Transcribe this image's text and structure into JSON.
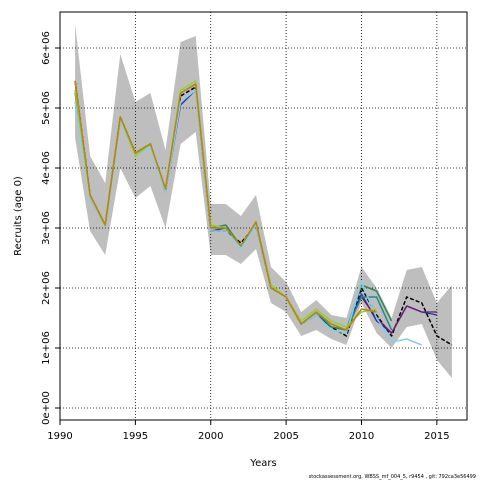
{
  "chart_data": {
    "type": "line",
    "xlabel": "Years",
    "ylabel": "Recruits (age 0)",
    "xlim": [
      1990,
      2017
    ],
    "ylim": [
      -200000,
      6600000
    ],
    "x_ticks": [
      1990,
      1995,
      2000,
      2005,
      2010,
      2015
    ],
    "x_tick_labels": [
      "1990",
      "1995",
      "2000",
      "2005",
      "2010",
      "2015"
    ],
    "y_ticks": [
      0,
      1000000,
      2000000,
      3000000,
      4000000,
      5000000,
      6000000
    ],
    "y_tick_labels": [
      "0e+00",
      "1e+06",
      "2e+06",
      "3e+06",
      "4e+06",
      "5e+06",
      "6e+06"
    ],
    "grid": true,
    "footer": "stockassessment.org, WBSS_mf_004_5, r9454 , git: 792ca3e56499",
    "band": {
      "color": "#bebebe",
      "x": [
        1991,
        1992,
        1993,
        1994,
        1995,
        1996,
        1997,
        1998,
        1999,
        2000,
        2001,
        2002,
        2003,
        2004,
        2005,
        2006,
        2007,
        2008,
        2009,
        2010,
        2011,
        2012,
        2013,
        2014,
        2015,
        2016
      ],
      "lower": [
        4500000,
        2950000,
        2550000,
        4000000,
        3500000,
        3700000,
        3000000,
        4400000,
        4600000,
        2550000,
        2550000,
        2400000,
        2650000,
        1750000,
        1600000,
        1200000,
        1300000,
        1150000,
        1050000,
        1750000,
        1250000,
        1000000,
        1350000,
        1400000,
        800000,
        500000
      ],
      "upper": [
        6400000,
        4200000,
        3750000,
        5900000,
        5100000,
        5250000,
        4300000,
        6100000,
        6200000,
        3400000,
        3400000,
        3200000,
        3550000,
        2350000,
        2100000,
        1600000,
        1800000,
        1550000,
        1500000,
        2350000,
        2000000,
        1500000,
        2300000,
        2350000,
        1750000,
        2050000
      ]
    },
    "series": [
      {
        "color": "#000000",
        "dashed": true,
        "width": 1.5,
        "x": [
          1991,
          1992,
          1993,
          1994,
          1995,
          1996,
          1997,
          1998,
          1999,
          2000,
          2001,
          2002,
          2003,
          2004,
          2005,
          2006,
          2007,
          2008,
          2009,
          2010,
          2011,
          2012,
          2013,
          2014,
          2015,
          2016
        ],
        "values": [
          5450000,
          3550000,
          3050000,
          4850000,
          4250000,
          4400000,
          3600000,
          5200000,
          5350000,
          2950000,
          2950000,
          2750000,
          3050000,
          2000000,
          1850000,
          1400000,
          1550000,
          1350000,
          1200000,
          2000000,
          1550000,
          1200000,
          1850000,
          1750000,
          1200000,
          1050000
        ]
      },
      {
        "color": "#2233aa",
        "dashed": false,
        "width": 1.3,
        "x": [
          1991,
          1992,
          1993,
          1994,
          1995,
          1996,
          1997,
          1998,
          1999,
          2000,
          2001,
          2002,
          2003,
          2004,
          2005,
          2006,
          2007,
          2008,
          2009,
          2010,
          2011,
          2012,
          2013,
          2014,
          2015
        ],
        "values": [
          5300000,
          3500000,
          3050000,
          4800000,
          4250000,
          4400000,
          3600000,
          5050000,
          5300000,
          2950000,
          3000000,
          2700000,
          3050000,
          2000000,
          1850000,
          1400000,
          1550000,
          1350000,
          1300000,
          1900000,
          1450000,
          1250000,
          1700000,
          1600000,
          1550000
        ]
      },
      {
        "color": "#6a1b6a",
        "dashed": false,
        "width": 1.3,
        "x": [
          2010,
          2011,
          2012,
          2013,
          2014,
          2015
        ],
        "values": [
          1850000,
          1500000,
          1250000,
          1700000,
          1600000,
          1600000
        ]
      },
      {
        "color": "#2e8b57",
        "dashed": false,
        "width": 1.5,
        "x": [
          1991,
          1992,
          1993,
          1994,
          1995,
          1996,
          1997,
          1998,
          1999,
          2000,
          2001,
          2002,
          2003,
          2004,
          2005,
          2006,
          2007,
          2008,
          2009,
          2010,
          2011,
          2012
        ],
        "values": [
          5250000,
          3550000,
          3050000,
          4850000,
          4250000,
          4400000,
          3650000,
          5250000,
          5400000,
          3000000,
          3050000,
          2700000,
          3100000,
          2000000,
          1850000,
          1400000,
          1600000,
          1350000,
          1300000,
          2050000,
          1950000,
          1450000
        ]
      },
      {
        "color": "#1e8a8a",
        "dashed": false,
        "width": 1.5,
        "x": [
          2009,
          2010,
          2011,
          2012
        ],
        "values": [
          1300000,
          1850000,
          1850000,
          1300000
        ]
      },
      {
        "color": "#87ceeb",
        "dashed": false,
        "width": 1.5,
        "x": [
          1991,
          1992,
          1993,
          1994,
          1995,
          1996,
          1997,
          1998,
          1999,
          2000,
          2001,
          2002,
          2003,
          2004,
          2005,
          2006,
          2007,
          2008,
          2009,
          2010,
          2011,
          2012,
          2013,
          2014
        ],
        "values": [
          5100000,
          3500000,
          3050000,
          4800000,
          4200000,
          4350000,
          3600000,
          5100000,
          5300000,
          2950000,
          2950000,
          2650000,
          3050000,
          2000000,
          1850000,
          1400000,
          1550000,
          1300000,
          1250000,
          2100000,
          1500000,
          1100000,
          1150000,
          1050000
        ]
      },
      {
        "color": "#9acd32",
        "dashed": false,
        "width": 1.5,
        "x": [
          1991,
          1992,
          1993,
          1994,
          1995,
          1996,
          1997,
          1998,
          1999,
          2000,
          2001,
          2002,
          2003,
          2004,
          2005,
          2006,
          2007,
          2008,
          2009,
          2010,
          2011
        ],
        "values": [
          5300000,
          3550000,
          3050000,
          4850000,
          4200000,
          4400000,
          3650000,
          5300000,
          5450000,
          3050000,
          3000000,
          2700000,
          3100000,
          2050000,
          1850000,
          1450000,
          1650000,
          1450000,
          1350000,
          1600000,
          1650000
        ]
      },
      {
        "color": "#b8860b",
        "dashed": false,
        "width": 1.5,
        "x": [
          1991,
          1992,
          1993,
          1994,
          1995,
          1996,
          1997,
          1998,
          1999,
          2000,
          2001,
          2002,
          2003,
          2004,
          2005,
          2006,
          2007,
          2008,
          2009,
          2010,
          2011
        ],
        "values": [
          5450000,
          3550000,
          3050000,
          4850000,
          4250000,
          4400000,
          3650000,
          5250000,
          5400000,
          3000000,
          3000000,
          2700000,
          3100000,
          2000000,
          1850000,
          1400000,
          1600000,
          1400000,
          1300000,
          1650000,
          1600000
        ]
      }
    ]
  }
}
